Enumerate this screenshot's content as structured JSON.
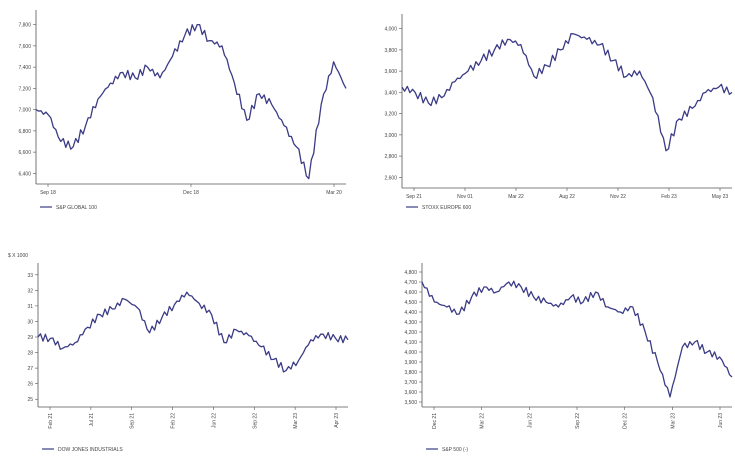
{
  "chart_data": [
    {
      "type": "line",
      "title": "",
      "ylim": [
        6300,
        7900
      ],
      "y_ticks": [
        "7,800",
        "7,600",
        "7,400",
        "7,200",
        "7,000",
        "6,800",
        "6,600",
        "6,400"
      ],
      "x_ticks": [
        "Sep 18",
        "Dec 18",
        "Mar 20"
      ],
      "legend": "S&P GLOBAL 100",
      "series_color": "#3b3b86",
      "x": [
        0,
        4,
        8,
        12,
        16,
        20,
        24,
        28,
        32,
        36,
        40,
        44,
        48,
        52,
        56,
        60,
        64,
        68,
        72,
        76,
        80,
        84,
        88,
        92,
        96,
        100
      ],
      "values": [
        7000,
        6950,
        6700,
        6650,
        6850,
        7100,
        7250,
        7350,
        7300,
        7400,
        7300,
        7500,
        7700,
        7800,
        7650,
        7600,
        7250,
        6900,
        7150,
        7050,
        6850,
        6650,
        6350,
        7050,
        7450,
        7200
      ]
    },
    {
      "type": "line",
      "title": "",
      "ylim": [
        2500,
        4100
      ],
      "y_ticks": [
        "4,000",
        "3,800",
        "3,600",
        "3,400",
        "3,200",
        "3,000",
        "2,800",
        "2,600"
      ],
      "x_ticks": [
        "Sep 21",
        "Nov 01",
        "Mar 22",
        "Aug 22",
        "Nov 22",
        "Feb 23",
        "May 23"
      ],
      "legend": "STOXX EUROPE 600",
      "series_color": "#3b3b86",
      "x": [
        0,
        4,
        8,
        12,
        16,
        20,
        24,
        28,
        32,
        36,
        40,
        44,
        48,
        52,
        56,
        60,
        64,
        68,
        72,
        76,
        80,
        84,
        88,
        92,
        96,
        100
      ],
      "values": [
        3450,
        3400,
        3300,
        3350,
        3500,
        3600,
        3700,
        3800,
        3900,
        3850,
        3550,
        3650,
        3800,
        3950,
        3900,
        3850,
        3700,
        3550,
        3600,
        3350,
        2850,
        3150,
        3250,
        3400,
        3450,
        3400
      ]
    },
    {
      "type": "line",
      "title": "",
      "ylim": [
        24,
        34
      ],
      "y_ticks": [
        "33",
        "32",
        "31",
        "30",
        "29",
        "28",
        "27",
        "26",
        "25"
      ],
      "x_ticks": [
        "Feb 21",
        "Jul 21",
        "Sep 21",
        "Feb 22",
        "Jun 22",
        "Sep 22",
        "Mar 23",
        "Apr 23"
      ],
      "y_unit_label": "$ X 1000",
      "legend": "DOW JONES INDUSTRIALS",
      "series_color": "#3b3b86",
      "x": [
        0,
        4,
        8,
        12,
        16,
        20,
        24,
        28,
        32,
        36,
        40,
        44,
        48,
        52,
        56,
        60,
        64,
        68,
        72,
        76,
        80,
        84,
        88,
        92,
        96,
        100
      ],
      "values": [
        29,
        28.9,
        28.2,
        28.6,
        29.7,
        30.6,
        31,
        31.7,
        31.1,
        29.3,
        30.4,
        31.3,
        32.2,
        31.4,
        30.6,
        28.6,
        29.5,
        29.1,
        28.3,
        27.4,
        26.6,
        27.3,
        28.8,
        29.2,
        28.9,
        28.8
      ]
    },
    {
      "type": "line",
      "title": "",
      "ylim": [
        3450,
        4850
      ],
      "y_ticks": [
        "4,800",
        "4,700",
        "4,600",
        "4,500",
        "4,400",
        "4,300",
        "4,200",
        "4,100",
        "4,000",
        "3,900",
        "3,800",
        "3,700",
        "3,600",
        "3,500"
      ],
      "x_ticks": [
        "Dec 21",
        "Mar 22",
        "Jun 22",
        "Sep 22",
        "Dec 22",
        "Mar 23",
        "Jun 23"
      ],
      "legend": "S&P 500 (-)",
      "series_color": "#3b3b86",
      "x": [
        0,
        4,
        8,
        12,
        16,
        20,
        24,
        28,
        32,
        36,
        40,
        44,
        48,
        52,
        56,
        60,
        64,
        68,
        72,
        76,
        80,
        84,
        88,
        92,
        96,
        100
      ],
      "values": [
        4700,
        4500,
        4450,
        4380,
        4550,
        4650,
        4600,
        4700,
        4650,
        4550,
        4500,
        4450,
        4550,
        4500,
        4600,
        4450,
        4400,
        4450,
        4200,
        3900,
        3550,
        4050,
        4100,
        4000,
        3950,
        3750
      ]
    }
  ]
}
